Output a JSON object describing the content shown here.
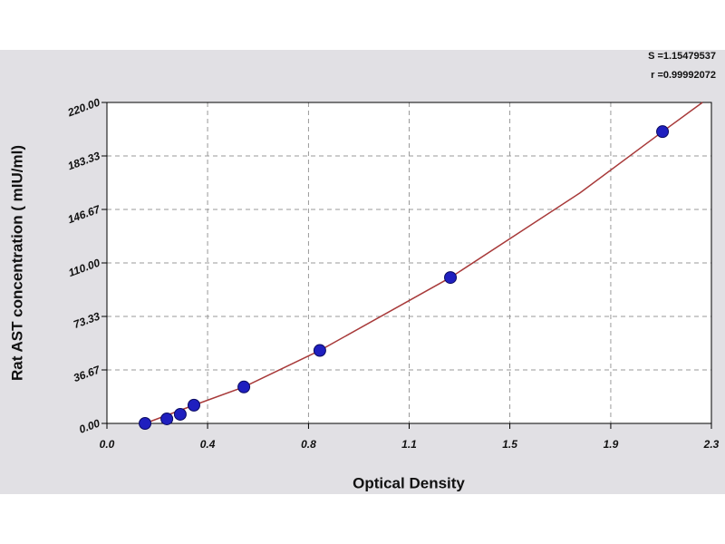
{
  "chart_data": {
    "type": "scatter",
    "xlabel": "Optical Density",
    "ylabel": "Rat AST concentration ( mIU/ml)",
    "annotations": [
      "S =1.15479537",
      "r =0.99992072"
    ],
    "x": [
      0.145,
      0.228,
      0.279,
      0.331,
      0.521,
      0.81,
      1.307,
      2.114
    ],
    "values": [
      0,
      3.125,
      6.25,
      12.5,
      25,
      50,
      100,
      200
    ],
    "color": "#1f1fbf",
    "fit": {
      "color": "#a83a3a",
      "x": [
        0.145,
        0.331,
        0.521,
        0.81,
        1.307,
        1.8,
        2.114,
        2.266
      ],
      "values": [
        0,
        12.5,
        25,
        50,
        100,
        158,
        200,
        220
      ]
    },
    "xlim": [
      0,
      2.3
    ],
    "ylim": [
      0,
      220
    ],
    "xticks": [
      {
        "value": 0,
        "label": "0.0"
      },
      {
        "value": 0.383,
        "label": "0.4"
      },
      {
        "value": 0.767,
        "label": "0.8"
      },
      {
        "value": 1.15,
        "label": "1.1"
      },
      {
        "value": 1.533,
        "label": "1.5"
      },
      {
        "value": 1.917,
        "label": "1.9"
      },
      2.3
    ],
    "yticks": [
      {
        "value": 0,
        "label": "0.00"
      },
      36.67,
      73.33,
      {
        "value": 110,
        "label": "110.00"
      },
      146.67,
      183.33,
      {
        "value": 220,
        "label": "220.00"
      }
    ],
    "grid": true
  }
}
